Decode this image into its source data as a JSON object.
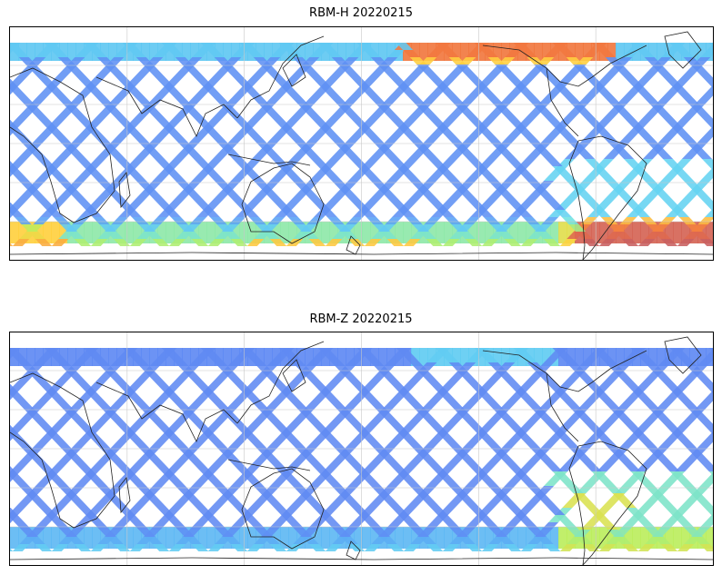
{
  "figure": {
    "panels": [
      {
        "title": "RBM-H 20220215",
        "variable": "RBM-H",
        "date": "20220215",
        "colormap": "jet",
        "high_value_regions": "southern high latitudes and northern polar band"
      },
      {
        "title": "RBM-Z 20220215",
        "variable": "RBM-Z",
        "date": "20220215",
        "colormap": "jet",
        "high_value_regions": "weaker; mostly southern Atlantic"
      }
    ],
    "projection": "PlateCarree, central longitude ~180",
    "gridlines": true,
    "colors": {
      "low": "#6a6af0",
      "mid_low": "#5aa0f5",
      "mid": "#66e0f0",
      "mid_high": "#b8f060",
      "high": "#ffd040",
      "very_high": "#f07040",
      "max": "#c86060"
    }
  }
}
